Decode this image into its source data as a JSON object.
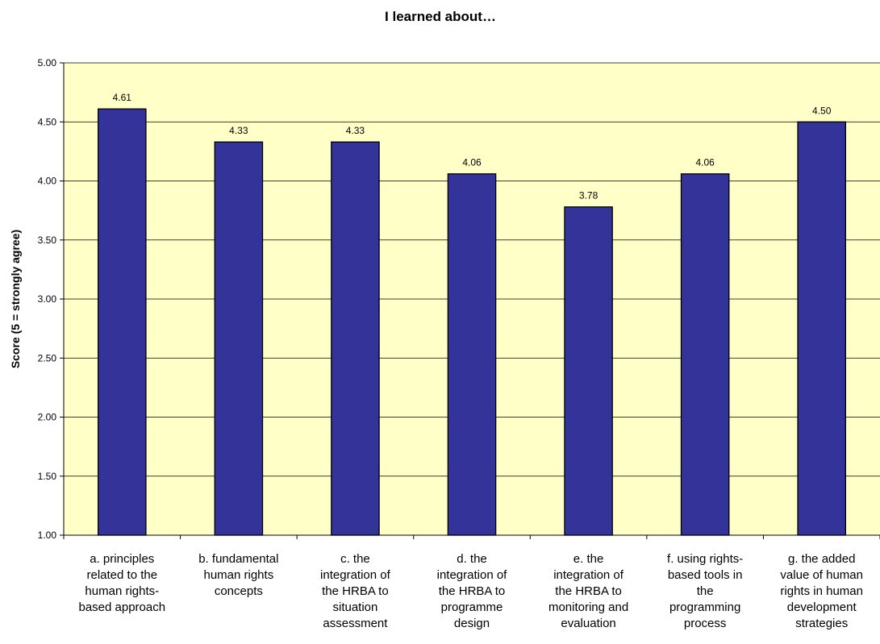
{
  "chart_data": {
    "type": "bar",
    "title": "I learned about…",
    "xlabel": "",
    "ylabel": "Score (5 = strongly agree)",
    "ylim": [
      1.0,
      5.0
    ],
    "yticks": [
      "1.00",
      "1.50",
      "2.00",
      "2.50",
      "3.00",
      "3.50",
      "4.00",
      "4.50",
      "5.00"
    ],
    "grid": true,
    "legend": "none",
    "categories": [
      [
        "a. principles",
        "related to the",
        "human rights-",
        "based approach"
      ],
      [
        "b. fundamental",
        "human rights",
        "concepts"
      ],
      [
        "c. the",
        "integration of",
        "the HRBA to",
        "situation",
        "assessment"
      ],
      [
        "d. the",
        "integration of",
        "the HRBA to",
        "programme",
        "design"
      ],
      [
        "e. the",
        "integration of",
        "the HRBA to",
        "monitoring and",
        "evaluation"
      ],
      [
        "f. using rights-",
        "based tools in",
        "the",
        "programming",
        "process"
      ],
      [
        "g. the added",
        "value of human",
        "rights in human",
        "development",
        "strategies"
      ]
    ],
    "values": [
      4.61,
      4.33,
      4.33,
      4.06,
      3.78,
      4.06,
      4.5
    ],
    "value_labels": [
      "4.61",
      "4.33",
      "4.33",
      "4.06",
      "3.78",
      "4.06",
      "4.50"
    ],
    "colors": {
      "bar": "#333399",
      "plot_background": "#ffffc8",
      "gridline": "#000000"
    }
  }
}
